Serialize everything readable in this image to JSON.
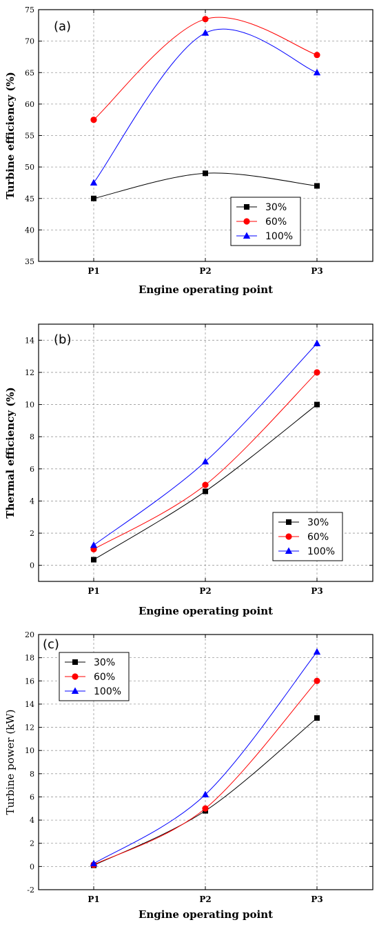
{
  "chart_data": [
    {
      "type": "line",
      "panel_label": "(a)",
      "categories": [
        "P1",
        "P2",
        "P3"
      ],
      "xlabel": "Engine operating point",
      "ylabel": "Turbine efficiency (%)",
      "ylabel_bold": true,
      "ylim": [
        35,
        75
      ],
      "yticks": [
        35,
        40,
        45,
        50,
        55,
        60,
        65,
        70,
        75
      ],
      "grid": true,
      "legend_position": "lower-right",
      "series": [
        {
          "name": "30%",
          "values": [
            45,
            49,
            47
          ],
          "color": "#000000",
          "marker": "square"
        },
        {
          "name": "60%",
          "values": [
            57.5,
            73.5,
            67.8
          ],
          "color": "#ff0000",
          "marker": "circle"
        },
        {
          "name": "100%",
          "values": [
            47.5,
            71.3,
            65
          ],
          "color": "#0000ff",
          "marker": "triangle"
        }
      ]
    },
    {
      "type": "line",
      "panel_label": "(b)",
      "categories": [
        "P1",
        "P2",
        "P3"
      ],
      "xlabel": "Engine operating point",
      "ylabel": "Thermal efficiency (%)",
      "ylabel_bold": true,
      "ylim": [
        -1,
        15
      ],
      "yticks": [
        0,
        2,
        4,
        6,
        8,
        10,
        12,
        14
      ],
      "grid": true,
      "legend_position": "lower-right",
      "series": [
        {
          "name": "30%",
          "values": [
            0.35,
            4.6,
            10
          ],
          "color": "#000000",
          "marker": "square"
        },
        {
          "name": "60%",
          "values": [
            1.0,
            5.0,
            12
          ],
          "color": "#ff0000",
          "marker": "circle"
        },
        {
          "name": "100%",
          "values": [
            1.25,
            6.45,
            13.8
          ],
          "color": "#0000ff",
          "marker": "triangle"
        }
      ]
    },
    {
      "type": "line",
      "panel_label": "(c)",
      "categories": [
        "P1",
        "P2",
        "P3"
      ],
      "xlabel": "Engine operating point",
      "ylabel": "Turbine power (kW)",
      "ylabel_bold": false,
      "ylim": [
        -2,
        20
      ],
      "yticks": [
        -2,
        0,
        2,
        4,
        6,
        8,
        10,
        12,
        14,
        16,
        18,
        20
      ],
      "grid": true,
      "legend_position": "upper-left",
      "series": [
        {
          "name": "30%",
          "values": [
            0.1,
            4.8,
            12.8
          ],
          "color": "#000000",
          "marker": "square"
        },
        {
          "name": "60%",
          "values": [
            0.15,
            5.0,
            16
          ],
          "color": "#ff0000",
          "marker": "circle"
        },
        {
          "name": "100%",
          "values": [
            0.25,
            6.2,
            18.5
          ],
          "color": "#0000ff",
          "marker": "triangle"
        }
      ]
    }
  ]
}
